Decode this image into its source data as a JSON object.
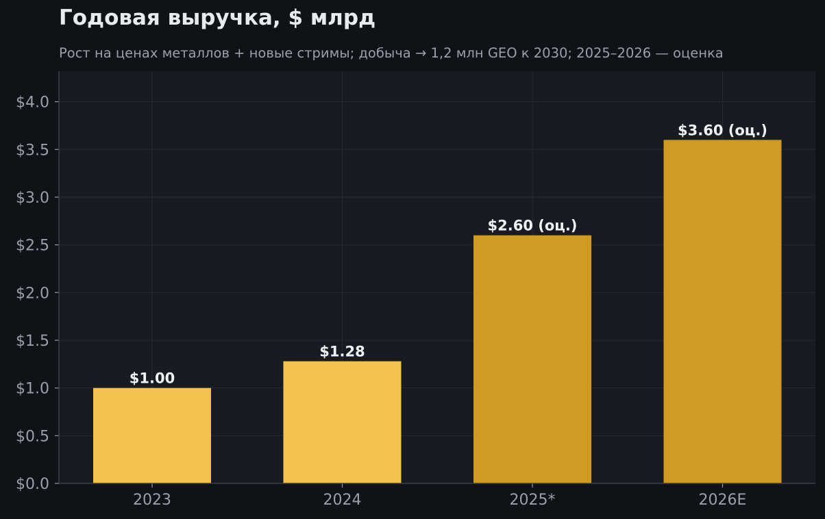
{
  "colors": {
    "page_bg": "#0f1318",
    "plot_bg": "#181b22",
    "grid": "#262a32",
    "axis": "#3a3f47",
    "tick_text": "#9aa0a8",
    "label_text": "#f0f2f5",
    "actual_bar": "#f2c14e",
    "estimate_bar": "#d19a23"
  },
  "chart_data": {
    "type": "bar",
    "title": "Годовая выручка, $ млрд",
    "subtitle": "Рост на ценах металлов + новые стримы; добыча → 1,2 млн GEO к 2030; 2025–2026 — оценка",
    "xlabel": "",
    "ylabel": "",
    "categories": [
      "2023",
      "2024",
      "2025*",
      "2026E"
    ],
    "values": [
      1.0,
      1.28,
      2.6,
      3.6
    ],
    "estimate": [
      false,
      false,
      true,
      true
    ],
    "data_labels": [
      "$1.00",
      "$1.28",
      "$2.60 (оц.)",
      "$3.60 (оц.)"
    ],
    "ylim": [
      0,
      4.32
    ],
    "yticks": [
      0,
      0.5,
      1.0,
      1.5,
      2.0,
      2.5,
      3.0,
      3.5,
      4.0
    ],
    "ytick_labels": [
      "$0.0",
      "$0.5",
      "$1.0",
      "$1.5",
      "$2.0",
      "$2.5",
      "$3.0",
      "$3.5",
      "$4.0"
    ],
    "grid": true,
    "legend": "none"
  }
}
